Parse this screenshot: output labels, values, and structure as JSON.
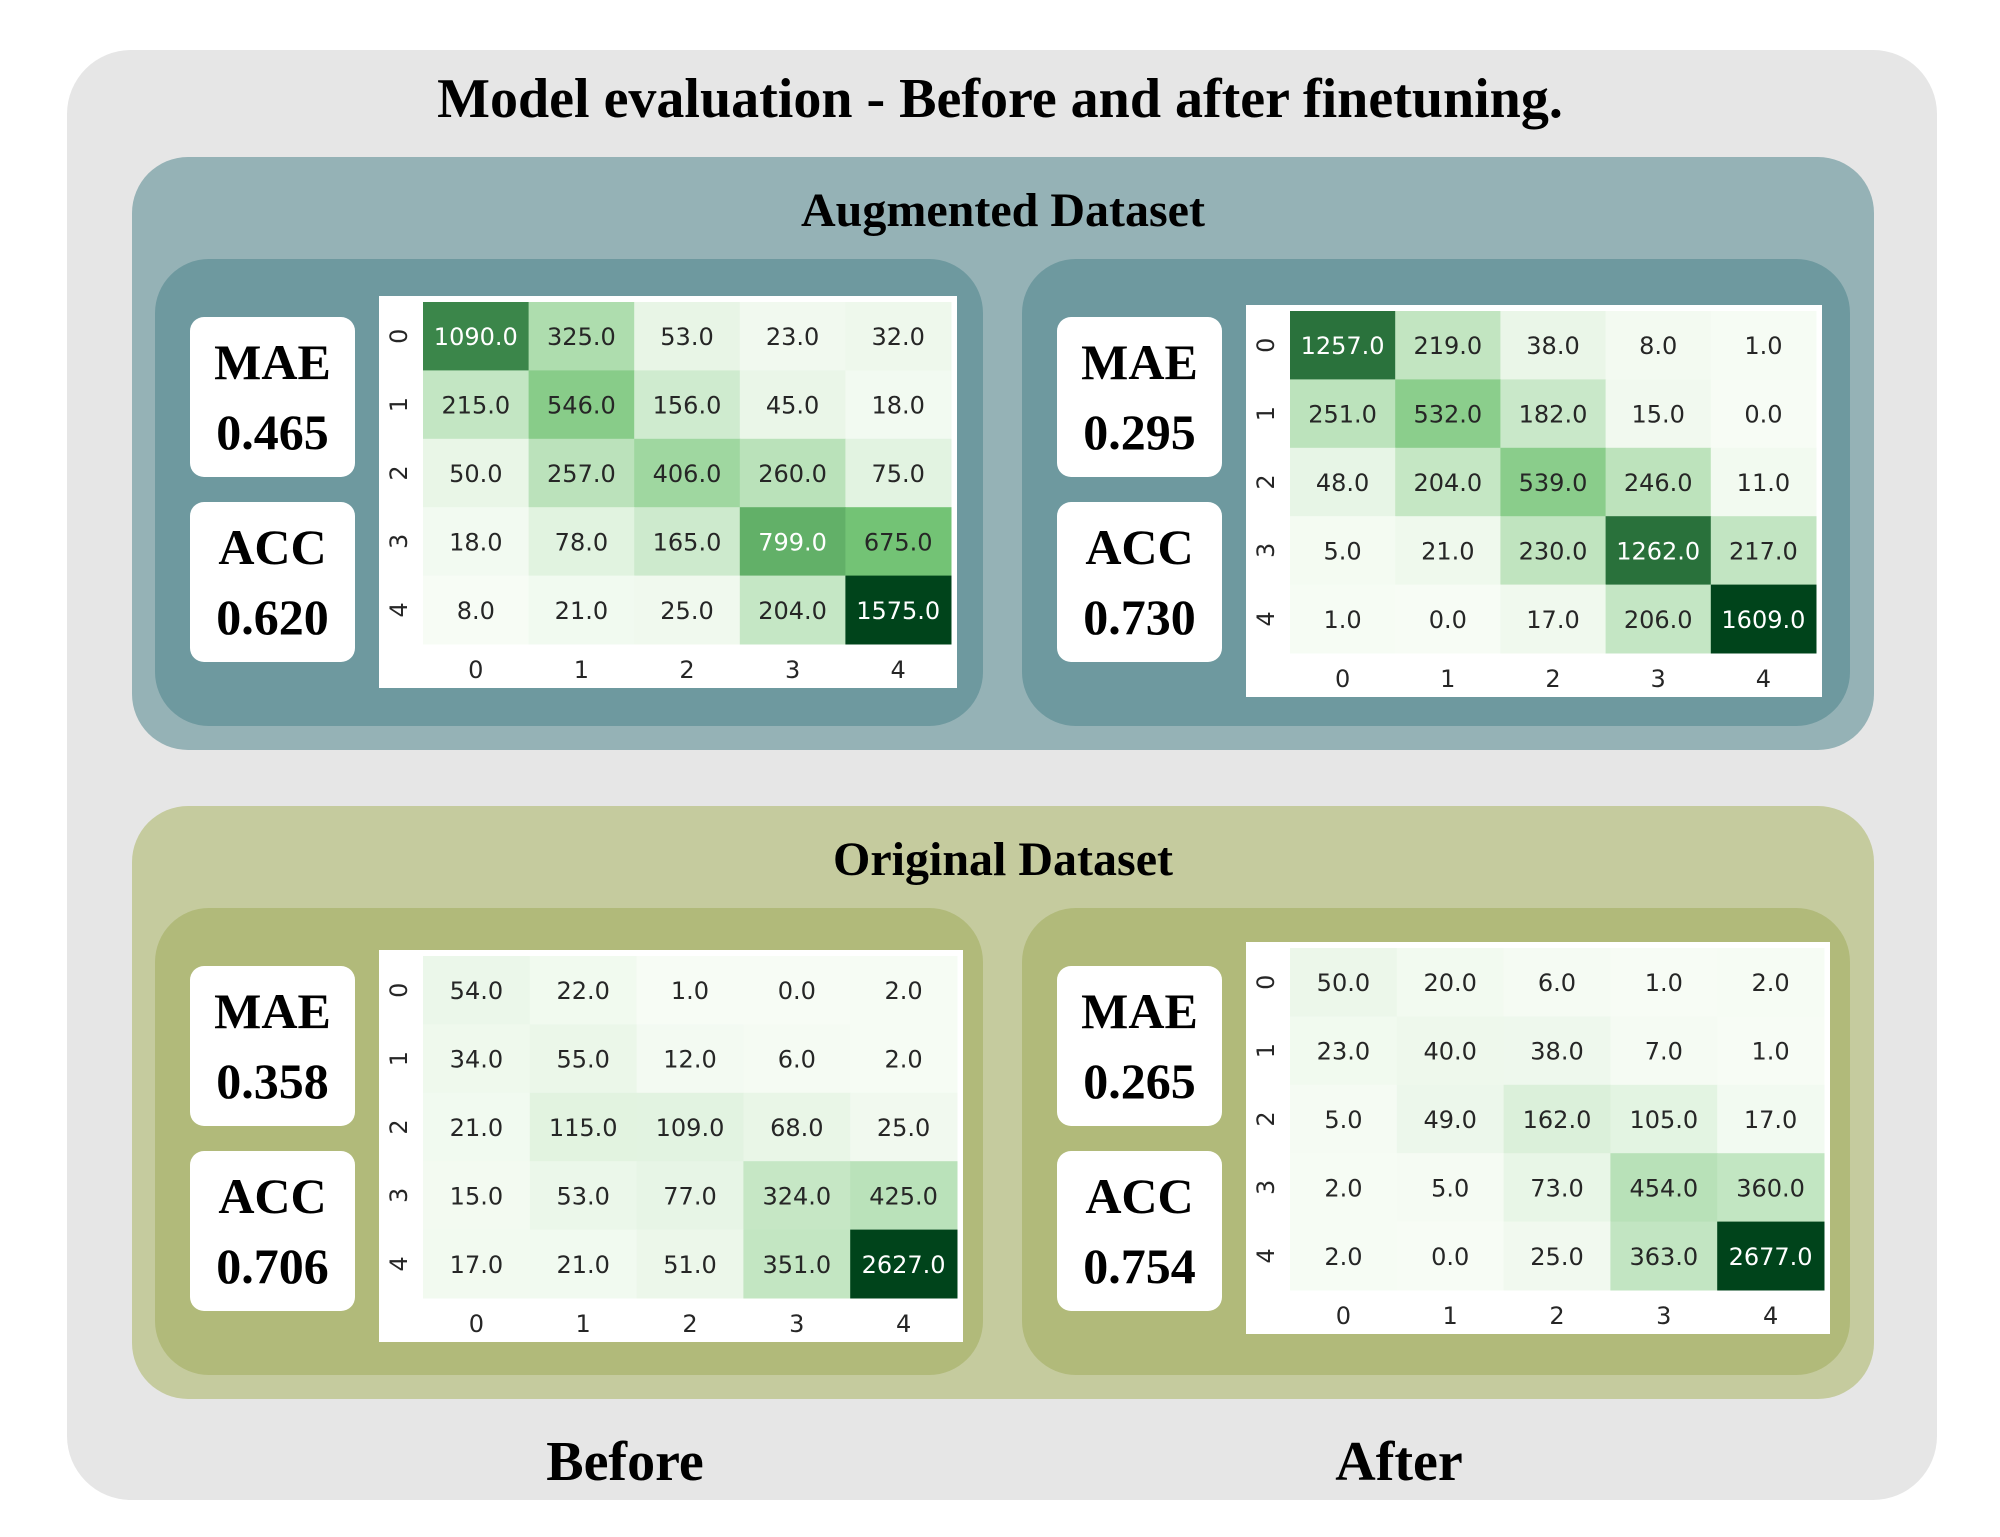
{
  "title": "Model evaluation - Before and after finetuning.",
  "columns": {
    "before": "Before",
    "after": "After"
  },
  "sections": {
    "augmented": {
      "title": "Augmented Dataset",
      "before": {
        "mae_label": "MAE",
        "mae": "0.465",
        "acc_label": "ACC",
        "acc": "0.620"
      },
      "after": {
        "mae_label": "MAE",
        "mae": "0.295",
        "acc_label": "ACC",
        "acc": "0.730"
      }
    },
    "original": {
      "title": "Original Dataset",
      "before": {
        "mae_label": "MAE",
        "mae": "0.358",
        "acc_label": "ACC",
        "acc": "0.706"
      },
      "after": {
        "mae_label": "MAE",
        "mae": "0.265",
        "acc_label": "ACC",
        "acc": "0.754"
      }
    }
  },
  "colors": {
    "cmap_low": "#f7fcf5",
    "cmap_mid": "#74c476",
    "cmap_high": "#00441b"
  },
  "chart_data": [
    {
      "type": "heatmap",
      "id": "aug_before",
      "x_ticks": [
        "0",
        "1",
        "2",
        "3",
        "4"
      ],
      "y_ticks": [
        "0",
        "1",
        "2",
        "3",
        "4"
      ],
      "values": [
        [
          1090.0,
          325.0,
          53.0,
          23.0,
          32.0
        ],
        [
          215.0,
          546.0,
          156.0,
          45.0,
          18.0
        ],
        [
          50.0,
          257.0,
          406.0,
          260.0,
          75.0
        ],
        [
          18.0,
          78.0,
          165.0,
          799.0,
          675.0
        ],
        [
          8.0,
          21.0,
          25.0,
          204.0,
          1575.0
        ]
      ],
      "labels": [
        [
          "1090.0",
          "325.0",
          "53.0",
          "23.0",
          "32.0"
        ],
        [
          "215.0",
          "546.0",
          "156.0",
          "45.0",
          "18.0"
        ],
        [
          "50.0",
          "257.0",
          "406.0",
          "260.0",
          "75.0"
        ],
        [
          "18.0",
          "78.0",
          "165.0",
          "799.0",
          "675.0"
        ],
        [
          "8.0",
          "21.0",
          "25.0",
          "204.0",
          "1575.0"
        ]
      ]
    },
    {
      "type": "heatmap",
      "id": "aug_after",
      "x_ticks": [
        "0",
        "1",
        "2",
        "3",
        "4"
      ],
      "y_ticks": [
        "0",
        "1",
        "2",
        "3",
        "4"
      ],
      "values": [
        [
          1257.0,
          219.0,
          38.0,
          8.0,
          1.0
        ],
        [
          251.0,
          532.0,
          182.0,
          15.0,
          0.0
        ],
        [
          48.0,
          204.0,
          539.0,
          246.0,
          11.0
        ],
        [
          5.0,
          21.0,
          230.0,
          1262.0,
          217.0
        ],
        [
          1.0,
          0.0,
          17.0,
          206.0,
          1609.0
        ]
      ],
      "labels": [
        [
          "1257.0",
          "219.0",
          "38.0",
          "8.0",
          "1.0"
        ],
        [
          "251.0",
          "532.0",
          "182.0",
          "15.0",
          "0.0"
        ],
        [
          "48.0",
          "204.0",
          "539.0",
          "246.0",
          "11.0"
        ],
        [
          "5.0",
          "21.0",
          "230.0",
          "1262.0",
          "217.0"
        ],
        [
          "1.0",
          "0.0",
          "17.0",
          "206.0",
          "1609.0"
        ]
      ]
    },
    {
      "type": "heatmap",
      "id": "orig_before",
      "x_ticks": [
        "0",
        "1",
        "2",
        "3",
        "4"
      ],
      "y_ticks": [
        "0",
        "1",
        "2",
        "3",
        "4"
      ],
      "values": [
        [
          54.0,
          22.0,
          1.0,
          0.0,
          2.0
        ],
        [
          34.0,
          55.0,
          12.0,
          6.0,
          2.0
        ],
        [
          21.0,
          115.0,
          109.0,
          68.0,
          25.0
        ],
        [
          15.0,
          53.0,
          77.0,
          324.0,
          425.0
        ],
        [
          17.0,
          21.0,
          51.0,
          351.0,
          2627.0
        ]
      ],
      "labels": [
        [
          "54.0",
          "22.0",
          "1.0",
          "0.0",
          "2.0"
        ],
        [
          "34.0",
          "55.0",
          "12.0",
          "6.0",
          "2.0"
        ],
        [
          "21.0",
          "115.0",
          "109.0",
          "68.0",
          "25.0"
        ],
        [
          "15.0",
          "53.0",
          "77.0",
          "324.0",
          "425.0"
        ],
        [
          "17.0",
          "21.0",
          "51.0",
          "351.0",
          "2627.0"
        ]
      ]
    },
    {
      "type": "heatmap",
      "id": "orig_after",
      "x_ticks": [
        "0",
        "1",
        "2",
        "3",
        "4"
      ],
      "y_ticks": [
        "0",
        "1",
        "2",
        "3",
        "4"
      ],
      "values": [
        [
          50.0,
          20.0,
          6.0,
          1.0,
          2.0
        ],
        [
          23.0,
          40.0,
          38.0,
          7.0,
          1.0
        ],
        [
          5.0,
          49.0,
          162.0,
          105.0,
          17.0
        ],
        [
          2.0,
          5.0,
          73.0,
          454.0,
          360.0
        ],
        [
          2.0,
          0.0,
          25.0,
          363.0,
          2677.0
        ]
      ],
      "labels": [
        [
          "50.0",
          "20.0",
          "6.0",
          "1.0",
          "2.0"
        ],
        [
          "23.0",
          "40.0",
          "38.0",
          "7.0",
          "1.0"
        ],
        [
          "5.0",
          "49.0",
          "162.0",
          "105.0",
          "17.0"
        ],
        [
          "2.0",
          "5.0",
          "73.0",
          "454.0",
          "360.0"
        ],
        [
          "2.0",
          "0.0",
          "25.0",
          "363.0",
          "2677.0"
        ]
      ]
    }
  ]
}
